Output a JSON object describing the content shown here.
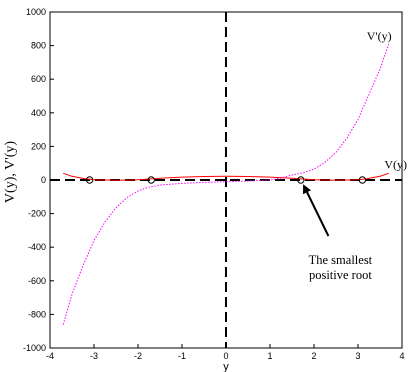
{
  "chart_data": {
    "type": "line",
    "xlabel": "y",
    "ylabel": "V(y), V'(y)",
    "xlim": [
      -4,
      4
    ],
    "ylim": [
      -1000,
      1000
    ],
    "x_ticks": [
      -4,
      -3,
      -2,
      -1,
      0,
      1,
      2,
      3,
      4
    ],
    "y_ticks": [
      -1000,
      -800,
      -600,
      -400,
      -200,
      0,
      200,
      400,
      600,
      800,
      1000
    ],
    "series": [
      {
        "name": "V(y)",
        "color": "#ff0000",
        "style": "solid",
        "points": [
          [
            -3.7,
            40
          ],
          [
            -3.5,
            22
          ],
          [
            -3.2,
            8
          ],
          [
            -3.0,
            1
          ],
          [
            -2.5,
            -2
          ],
          [
            -2.0,
            2
          ],
          [
            -1.5,
            10
          ],
          [
            -1.0,
            17
          ],
          [
            -0.5,
            21
          ],
          [
            0,
            22
          ],
          [
            0.5,
            21
          ],
          [
            1.0,
            17
          ],
          [
            1.5,
            10
          ],
          [
            2.0,
            2
          ],
          [
            2.5,
            -2
          ],
          [
            3.0,
            1
          ],
          [
            3.2,
            8
          ],
          [
            3.5,
            22
          ],
          [
            3.7,
            40
          ]
        ]
      },
      {
        "name": "V'(y)",
        "color": "#ff00ff",
        "style": "dotted",
        "points": [
          [
            -3.7,
            -860
          ],
          [
            -3.5,
            -680
          ],
          [
            -3.25,
            -510
          ],
          [
            -3.0,
            -360
          ],
          [
            -2.75,
            -250
          ],
          [
            -2.5,
            -165
          ],
          [
            -2.25,
            -105
          ],
          [
            -2.0,
            -65
          ],
          [
            -1.75,
            -42
          ],
          [
            -1.5,
            -30
          ],
          [
            -1.0,
            -20
          ],
          [
            -0.5,
            -14
          ],
          [
            0,
            -10
          ],
          [
            0.5,
            -6
          ],
          [
            1.0,
            0
          ],
          [
            1.25,
            12
          ],
          [
            1.5,
            30
          ],
          [
            1.75,
            42
          ],
          [
            2.0,
            65
          ],
          [
            2.25,
            105
          ],
          [
            2.5,
            165
          ],
          [
            2.75,
            250
          ],
          [
            3.0,
            360
          ],
          [
            3.25,
            510
          ],
          [
            3.5,
            660
          ],
          [
            3.7,
            810
          ]
        ]
      }
    ],
    "roots": [
      {
        "x": -3.1,
        "y": 0
      },
      {
        "x": -1.7,
        "y": 0
      },
      {
        "x": 1.7,
        "y": 0
      },
      {
        "x": 3.1,
        "y": 0
      }
    ],
    "annotations": [
      {
        "text": "V'(y)",
        "x": 3.2,
        "y": 810
      },
      {
        "text": "V(y)",
        "x": 3.6,
        "y": 45
      },
      {
        "text_lines": [
          "The smallest",
          "positive root"
        ],
        "x": 2.6,
        "y": -500,
        "arrow_to": [
          1.75,
          0
        ]
      }
    ],
    "grid": false,
    "legend": "none"
  }
}
